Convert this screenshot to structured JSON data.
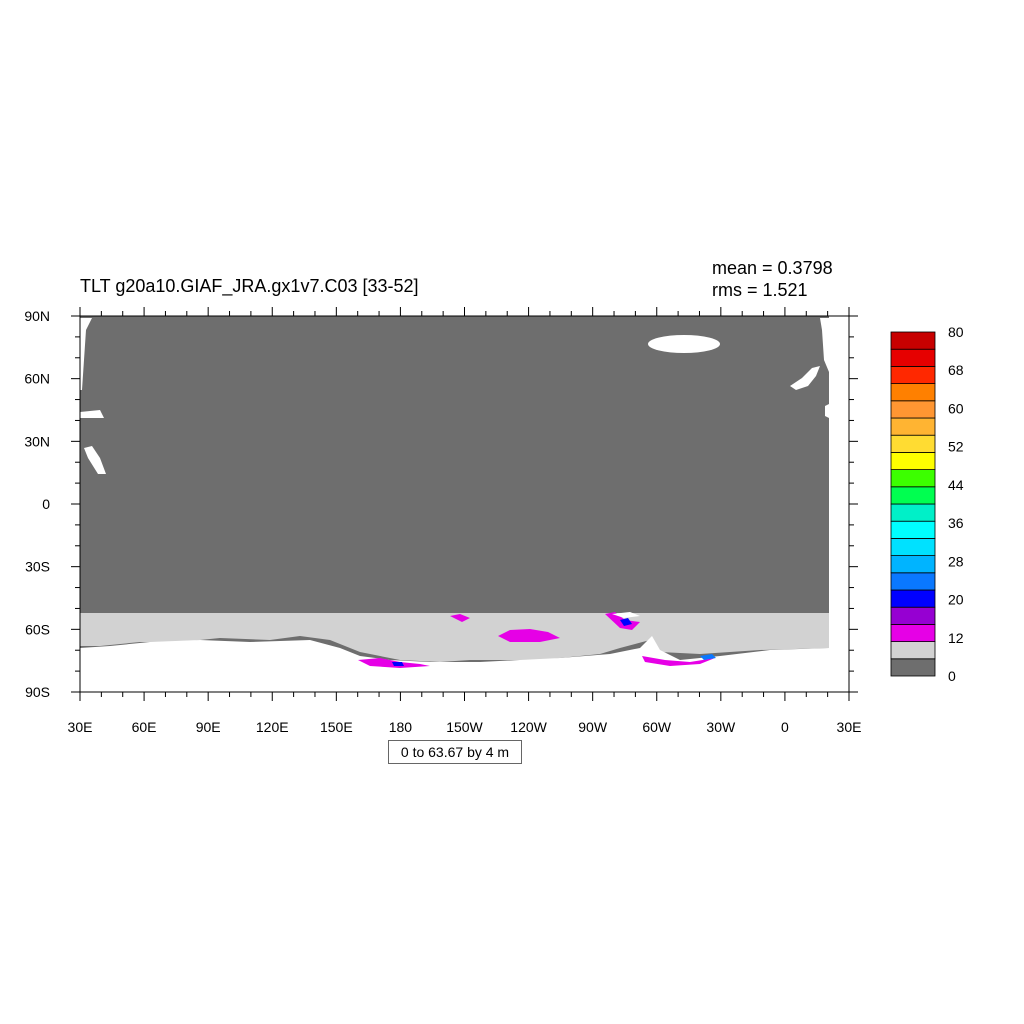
{
  "chart_data": {
    "type": "heatmap",
    "title": "TLT g20a10.GIAF_JRA.gx1v7.C03 [33-52]",
    "stats": {
      "mean": "mean = 0.3798",
      "rms": "rms = 1.521"
    },
    "range_label": "0 to 63.67 by 4 m",
    "x_axis": {
      "tick_labels": [
        "30E",
        "60E",
        "90E",
        "120E",
        "150E",
        "180",
        "150W",
        "120W",
        "90W",
        "60W",
        "30W",
        "0",
        "30E"
      ],
      "range": [
        30,
        390
      ]
    },
    "y_axis": {
      "tick_labels": [
        "90N",
        "60N",
        "30N",
        "0",
        "30S",
        "60S",
        "90S"
      ],
      "range": [
        90,
        -90
      ]
    },
    "colorbar": {
      "levels_labels": [
        "0",
        "12",
        "20",
        "28",
        "36",
        "44",
        "52",
        "60",
        "68",
        "80"
      ],
      "colors": [
        "#6e6e6e",
        "#d2d2d2",
        "#e600e6",
        "#9600d2",
        "#0000ff",
        "#0a78ff",
        "#00b4ff",
        "#00e1ff",
        "#00ffff",
        "#00f0c8",
        "#00ff50",
        "#3cff00",
        "#ffff00",
        "#ffdc32",
        "#ffb432",
        "#ff9632",
        "#ff8000",
        "#ff2800",
        "#e60000",
        "#c80000"
      ]
    },
    "fields": {
      "ocean": "#6e6e6e",
      "ice_edge": "#d2d2d2",
      "land": "#ffffff",
      "high": "#e600e6",
      "higher": "#0000ff"
    },
    "grid": false
  }
}
